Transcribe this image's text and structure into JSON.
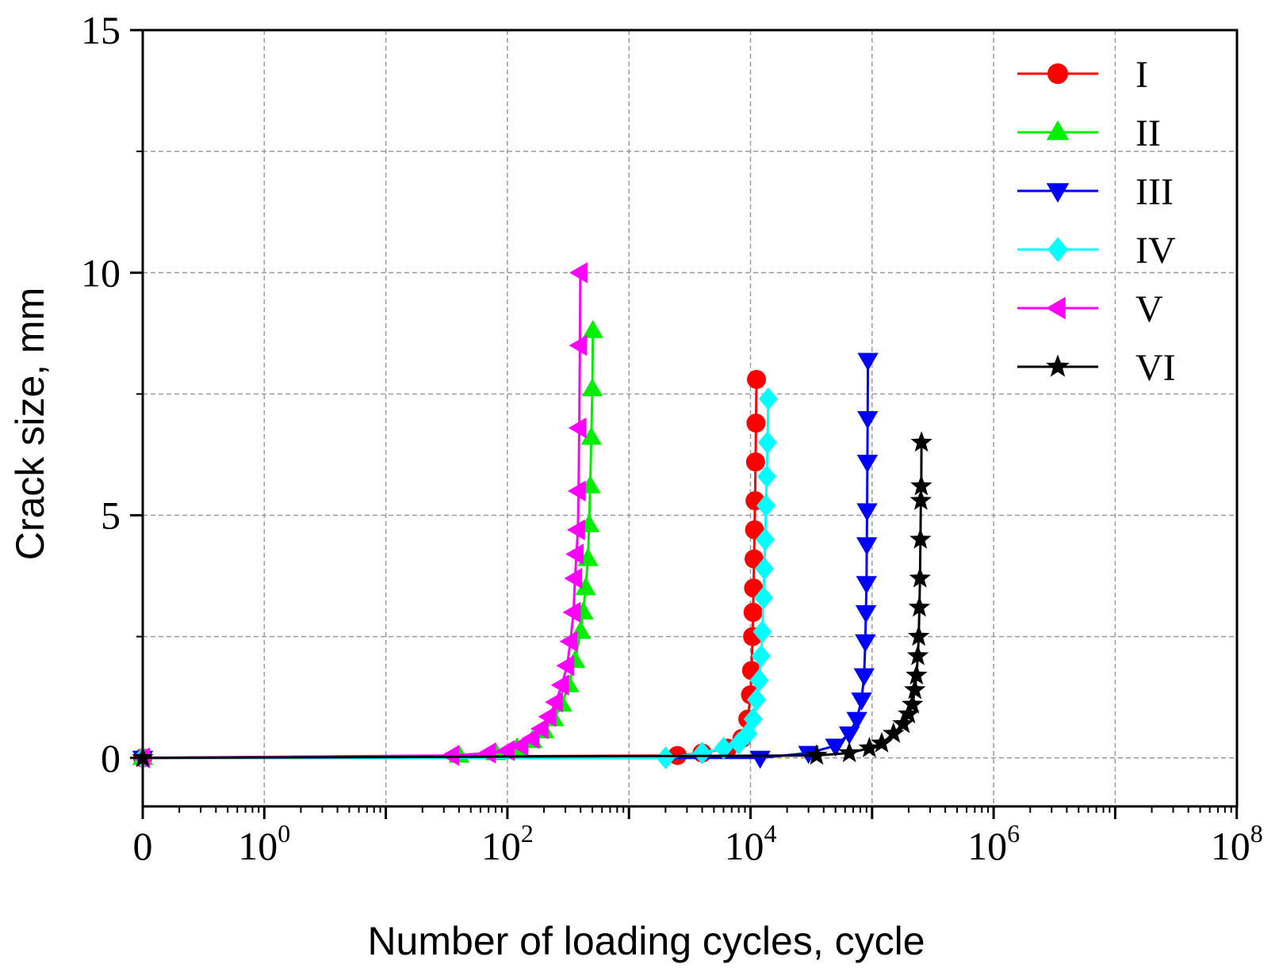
{
  "chart_data": {
    "type": "scatter",
    "xlabel": "Number of loading cycles, cycle",
    "ylabel": "Crack size, mm",
    "x_scale": "log",
    "x_ticks": [
      {
        "base": "0",
        "exp": ""
      },
      {
        "base": "10",
        "exp": "0"
      },
      {
        "base": "10",
        "exp": "2"
      },
      {
        "base": "10",
        "exp": "4"
      },
      {
        "base": "10",
        "exp": "6"
      },
      {
        "base": "10",
        "exp": "8"
      }
    ],
    "y_ticks": [
      "0",
      "5",
      "10",
      "15"
    ],
    "ylim": [
      -1,
      15
    ],
    "grid": true,
    "legend_position": "top-right",
    "series": [
      {
        "name": "I",
        "color": "#ff0000",
        "marker": "circle",
        "x": [
          0,
          2500,
          4000,
          6500,
          8500,
          9500,
          10000,
          10200,
          10400,
          10500,
          10600,
          10700,
          10800,
          10900,
          11000,
          11100,
          11200
        ],
        "y": [
          0,
          0.05,
          0.1,
          0.2,
          0.4,
          0.8,
          1.3,
          1.8,
          2.5,
          3.0,
          3.5,
          4.1,
          4.7,
          5.3,
          6.1,
          6.9,
          7.8
        ]
      },
      {
        "name": "II",
        "color": "#00ee00",
        "marker": "triangle-up",
        "x": [
          0,
          40,
          80,
          120,
          160,
          200,
          240,
          280,
          320,
          360,
          400,
          420,
          440,
          460,
          470,
          480,
          490,
          500,
          505
        ],
        "y": [
          0,
          0.05,
          0.1,
          0.2,
          0.35,
          0.55,
          0.8,
          1.1,
          1.5,
          2.0,
          2.6,
          3.0,
          3.5,
          4.1,
          4.8,
          5.6,
          6.6,
          7.6,
          8.8
        ]
      },
      {
        "name": "III",
        "color": "#0000ff",
        "marker": "triangle-down",
        "x": [
          0,
          12000,
          30000,
          50000,
          65000,
          75000,
          82000,
          86000,
          88000,
          89000,
          90000,
          90500,
          91000,
          91500,
          92000,
          92500
        ],
        "y": [
          0,
          0,
          0.1,
          0.25,
          0.5,
          0.8,
          1.2,
          1.7,
          2.4,
          3.0,
          3.6,
          4.4,
          5.1,
          6.1,
          7.0,
          8.2
        ]
      },
      {
        "name": "IV",
        "color": "#00ffff",
        "marker": "diamond",
        "x": [
          0,
          2000,
          4000,
          6000,
          8000,
          9500,
          10500,
          11200,
          11800,
          12200,
          12500,
          12800,
          13000,
          13200,
          13400,
          13600,
          13800,
          14000
        ],
        "y": [
          0,
          0,
          0.1,
          0.2,
          0.3,
          0.5,
          0.8,
          1.2,
          1.6,
          2.1,
          2.6,
          3.3,
          3.9,
          4.5,
          5.2,
          5.8,
          6.5,
          7.4
        ]
      },
      {
        "name": "V",
        "color": "#ff00ff",
        "marker": "triangle-left",
        "x": [
          0,
          35,
          70,
          100,
          130,
          160,
          190,
          220,
          250,
          280,
          310,
          330,
          350,
          360,
          370,
          380,
          385,
          390,
          395,
          398
        ],
        "y": [
          0,
          0.05,
          0.1,
          0.15,
          0.25,
          0.4,
          0.6,
          0.85,
          1.15,
          1.5,
          1.9,
          2.4,
          3.0,
          3.7,
          4.2,
          4.7,
          5.5,
          6.8,
          8.5,
          10.0
        ]
      },
      {
        "name": "VI",
        "color": "#000000",
        "marker": "star",
        "x": [
          0,
          35000,
          65000,
          95000,
          120000,
          150000,
          180000,
          200000,
          215000,
          225000,
          232000,
          238000,
          242000,
          245000,
          248000,
          250000,
          252000,
          254000,
          255000
        ],
        "y": [
          0,
          0.05,
          0.1,
          0.2,
          0.3,
          0.5,
          0.7,
          0.9,
          1.1,
          1.4,
          1.7,
          2.1,
          2.5,
          3.1,
          3.7,
          4.5,
          5.3,
          5.6,
          6.5
        ]
      }
    ]
  }
}
